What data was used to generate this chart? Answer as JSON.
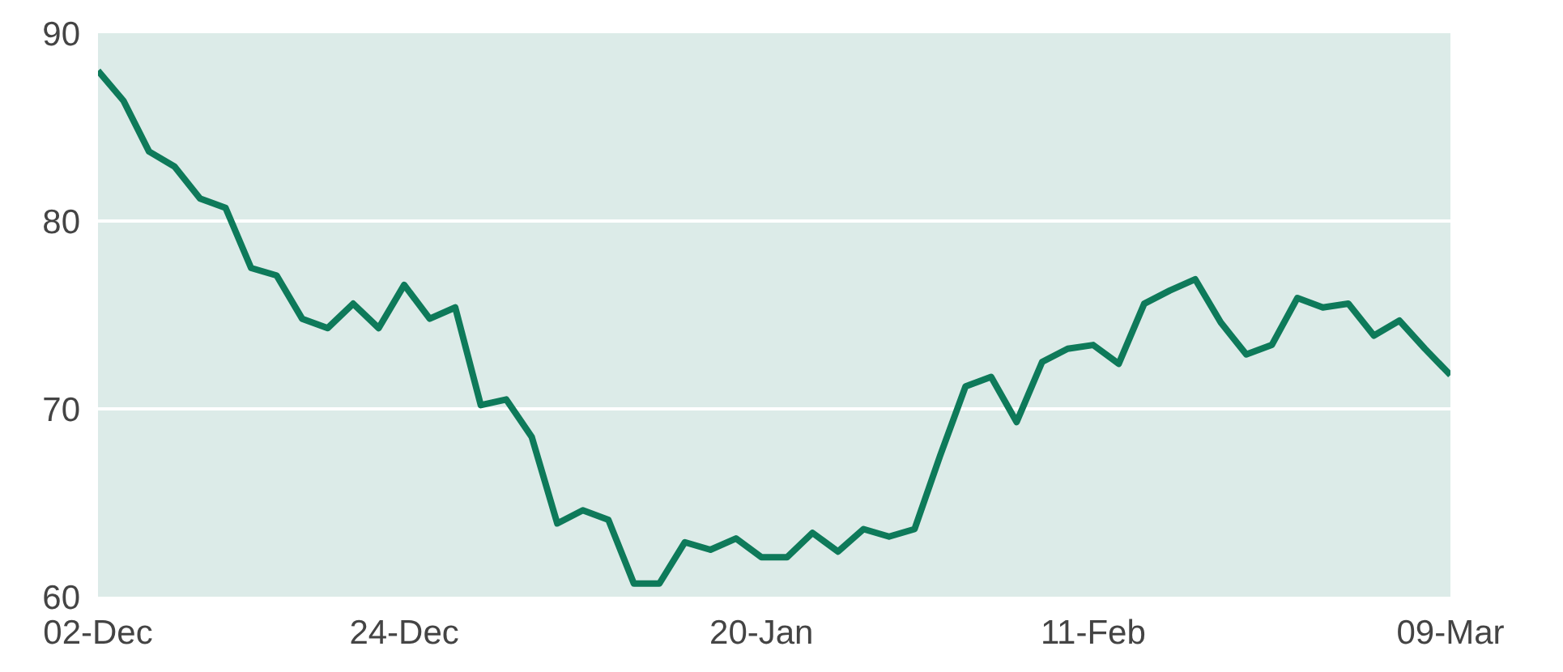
{
  "chart_data": {
    "type": "line",
    "categories": [
      "02-Dec",
      null,
      null,
      null,
      null,
      null,
      null,
      null,
      null,
      null,
      null,
      null,
      "24-Dec",
      null,
      null,
      null,
      null,
      null,
      null,
      null,
      null,
      null,
      null,
      null,
      null,
      null,
      "20-Jan",
      null,
      null,
      null,
      null,
      null,
      null,
      null,
      null,
      null,
      null,
      null,
      null,
      "11-Feb",
      null,
      null,
      null,
      null,
      null,
      null,
      null,
      null,
      null,
      null,
      null,
      null,
      null,
      "09-Mar"
    ],
    "series": [
      {
        "color": "#0e7a5a",
        "values": [
          88.0,
          86.4,
          83.7,
          82.9,
          81.2,
          80.7,
          77.5,
          77.1,
          74.8,
          74.3,
          75.6,
          74.3,
          76.6,
          74.8,
          75.4,
          70.2,
          70.5,
          68.5,
          63.9,
          64.6,
          64.1,
          60.7,
          60.7,
          62.9,
          62.5,
          63.1,
          62.1,
          62.1,
          63.4,
          62.4,
          63.6,
          63.2,
          63.6,
          67.5,
          71.2,
          71.7,
          69.3,
          72.5,
          73.2,
          73.4,
          72.4,
          75.6,
          76.3,
          76.9,
          74.6,
          72.9,
          73.4,
          75.9,
          75.4,
          75.6,
          73.9,
          74.7,
          73.2,
          71.8
        ]
      }
    ],
    "ylim": [
      60,
      90
    ],
    "yticks": [
      60,
      70,
      80,
      90
    ],
    "grid": "y",
    "line_style": "solid",
    "marker": "none"
  }
}
